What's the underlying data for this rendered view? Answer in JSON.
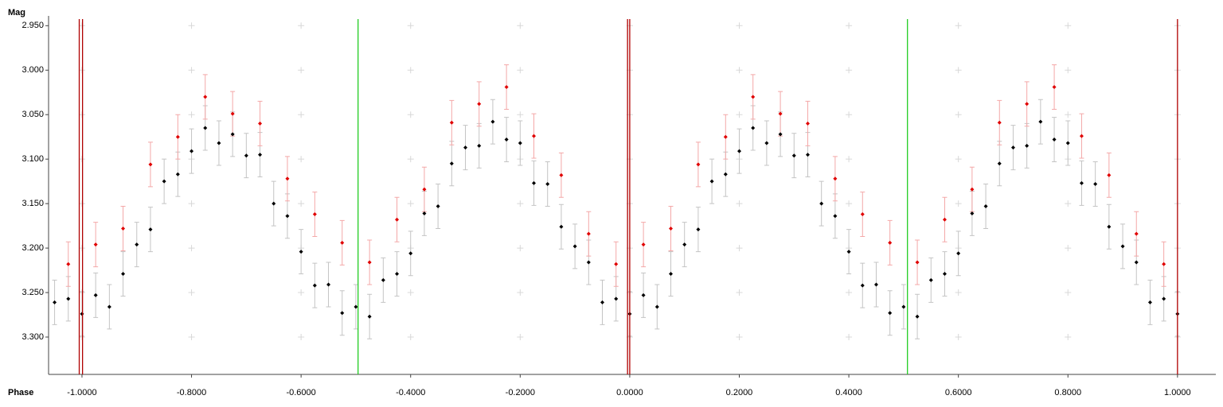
{
  "chart_data": {
    "type": "scatter",
    "y_axis_label": "Mag",
    "x_axis_label": "Phase",
    "xlim": [
      -1.061,
      1.07
    ],
    "ylim": [
      3.342,
      2.939
    ],
    "xticks": [
      {
        "value": -1.0,
        "label": "-1.0000"
      },
      {
        "value": -0.8,
        "label": "-0.8000"
      },
      {
        "value": -0.6,
        "label": "-0.6000"
      },
      {
        "value": -0.4,
        "label": "-0.4000"
      },
      {
        "value": -0.2,
        "label": "-0.2000"
      },
      {
        "value": 0.0,
        "label": "0.0000"
      },
      {
        "value": 0.2,
        "label": "0.2000"
      },
      {
        "value": 0.4,
        "label": "0.4000"
      },
      {
        "value": 0.6,
        "label": "0.6000"
      },
      {
        "value": 0.8,
        "label": "0.8000"
      },
      {
        "value": 1.0,
        "label": "1.0000"
      }
    ],
    "yticks": [
      {
        "value": 2.95,
        "label": "2.950"
      },
      {
        "value": 3.0,
        "label": "3.000"
      },
      {
        "value": 3.05,
        "label": "3.050"
      },
      {
        "value": 3.1,
        "label": "3.100"
      },
      {
        "value": 3.15,
        "label": "3.150"
      },
      {
        "value": 3.2,
        "label": "3.200"
      },
      {
        "value": 3.25,
        "label": "3.250"
      },
      {
        "value": 3.3,
        "label": "3.300"
      }
    ],
    "grid": true,
    "markers": [
      {
        "x": -1.005,
        "color": "#b00000"
      },
      {
        "x": -0.999,
        "color": "#b00000"
      },
      {
        "x": -0.496,
        "color": "#22cc22"
      },
      {
        "x": -0.004,
        "color": "#b00000"
      },
      {
        "x": 0.0,
        "color": "#b00000"
      },
      {
        "x": 0.507,
        "color": "#22cc22"
      },
      {
        "x": 1.0,
        "color": "#b00000"
      }
    ],
    "series": [
      {
        "color": "#000000",
        "error_color": "#c4c4c4",
        "error": 0.025,
        "x": [
          -1.05,
          -1.025,
          -1.0,
          -0.975,
          -0.95,
          -0.925,
          -0.9,
          -0.875,
          -0.85,
          -0.825,
          -0.8,
          -0.775,
          -0.75,
          -0.725,
          -0.7,
          -0.675,
          -0.65,
          -0.625,
          -0.6,
          -0.575,
          -0.55,
          -0.525,
          -0.5,
          -0.475,
          -0.45,
          -0.425,
          -0.4,
          -0.375,
          -0.35,
          -0.325,
          -0.3,
          -0.275,
          -0.25,
          -0.225,
          -0.2,
          -0.175,
          -0.15,
          -0.125,
          -0.1,
          -0.075,
          -0.05,
          -0.025,
          0.0,
          0.025,
          0.05,
          0.075,
          0.1,
          0.125,
          0.15,
          0.175,
          0.2,
          0.225,
          0.25,
          0.275,
          0.3,
          0.325,
          0.35,
          0.375,
          0.4,
          0.425,
          0.45,
          0.475,
          0.5,
          0.525,
          0.55,
          0.575,
          0.6,
          0.625,
          0.65,
          0.675,
          0.7,
          0.725,
          0.75,
          0.775,
          0.8,
          0.825,
          0.85,
          0.875,
          0.9,
          0.925,
          0.95,
          0.975,
          1.0
        ],
        "values": [
          3.261,
          3.257,
          3.274,
          3.253,
          3.266,
          3.229,
          3.196,
          3.179,
          3.125,
          3.117,
          3.091,
          3.065,
          3.082,
          3.072,
          3.096,
          3.095,
          3.15,
          3.164,
          3.204,
          3.242,
          3.241,
          3.273,
          3.266,
          3.277,
          3.236,
          3.229,
          3.206,
          3.161,
          3.153,
          3.105,
          3.087,
          3.085,
          3.058,
          3.078,
          3.082,
          3.127,
          3.128,
          3.176,
          3.198,
          3.216,
          3.261,
          3.257,
          3.274,
          3.253,
          3.266,
          3.229,
          3.196,
          3.179,
          3.125,
          3.117,
          3.091,
          3.065,
          3.082,
          3.072,
          3.096,
          3.095,
          3.15,
          3.164,
          3.204,
          3.242,
          3.241,
          3.273,
          3.266,
          3.277,
          3.236,
          3.229,
          3.206,
          3.161,
          3.153,
          3.105,
          3.087,
          3.085,
          3.058,
          3.078,
          3.082,
          3.127,
          3.128,
          3.176,
          3.198,
          3.216,
          3.261,
          3.257,
          3.274
        ]
      },
      {
        "color": "#e00000",
        "error_color": "#f4a8a8",
        "error": 0.025,
        "x": [
          -1.025,
          -0.975,
          -0.925,
          -0.875,
          -0.825,
          -0.775,
          -0.725,
          -0.675,
          -0.625,
          -0.575,
          -0.525,
          -0.475,
          -0.425,
          -0.375,
          -0.325,
          -0.275,
          -0.225,
          -0.175,
          -0.125,
          -0.075,
          -0.025,
          0.025,
          0.075,
          0.125,
          0.175,
          0.225,
          0.275,
          0.325,
          0.375,
          0.425,
          0.475,
          0.525,
          0.575,
          0.625,
          0.675,
          0.725,
          0.775,
          0.825,
          0.875,
          0.925,
          0.975
        ],
        "values": [
          3.218,
          3.196,
          3.178,
          3.106,
          3.075,
          3.03,
          3.049,
          3.06,
          3.122,
          3.162,
          3.194,
          3.216,
          3.168,
          3.134,
          3.059,
          3.038,
          3.019,
          3.074,
          3.118,
          3.184,
          3.218,
          3.196,
          3.178,
          3.106,
          3.075,
          3.03,
          3.049,
          3.06,
          3.122,
          3.162,
          3.194,
          3.216,
          3.168,
          3.134,
          3.059,
          3.038,
          3.019,
          3.074,
          3.118,
          3.184,
          3.218
        ]
      }
    ]
  }
}
